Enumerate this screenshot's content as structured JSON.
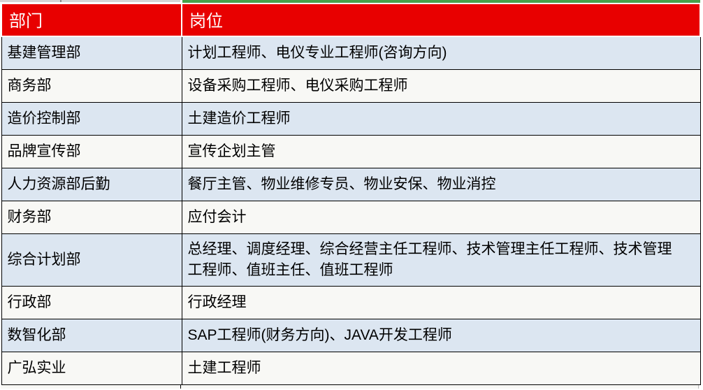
{
  "colors": {
    "header-bg": "#e80000",
    "header-text": "#ffffff",
    "row-alt-bg": "#dce6f1",
    "row-base-bg": "#f8f8f5",
    "body-text": "#000000",
    "grid-border": "#000000",
    "strip-gray": "#d5d5d5",
    "strip-green": "#46a24a"
  },
  "table": {
    "headers": [
      {
        "label": "部门"
      },
      {
        "label": "岗位"
      }
    ],
    "rows": [
      {
        "dept": "基建管理部",
        "positions": "计划工程师、电仪专业工程师(咨询方向)"
      },
      {
        "dept": "商务部",
        "positions": "设备采购工程师、电仪采购工程师"
      },
      {
        "dept": "造价控制部",
        "positions": "土建造价工程师"
      },
      {
        "dept": "品牌宣传部",
        "positions": "宣传企划主管"
      },
      {
        "dept": "人力资源部后勤",
        "positions": "餐厅主管、物业维修专员、物业安保、物业消控"
      },
      {
        "dept": "财务部",
        "positions": "应付会计"
      },
      {
        "dept": "综合计划部",
        "positions": "总经理、调度经理、综合经营主任工程师、技术管理主任工程师、技术管理工程师、值班主任、值班工程师"
      },
      {
        "dept": "行政部",
        "positions": "行政经理"
      },
      {
        "dept": "数智化部",
        "positions": "SAP工程师(财务方向)、JAVA开发工程师"
      },
      {
        "dept": "广弘实业",
        "positions": "土建工程师"
      }
    ]
  }
}
